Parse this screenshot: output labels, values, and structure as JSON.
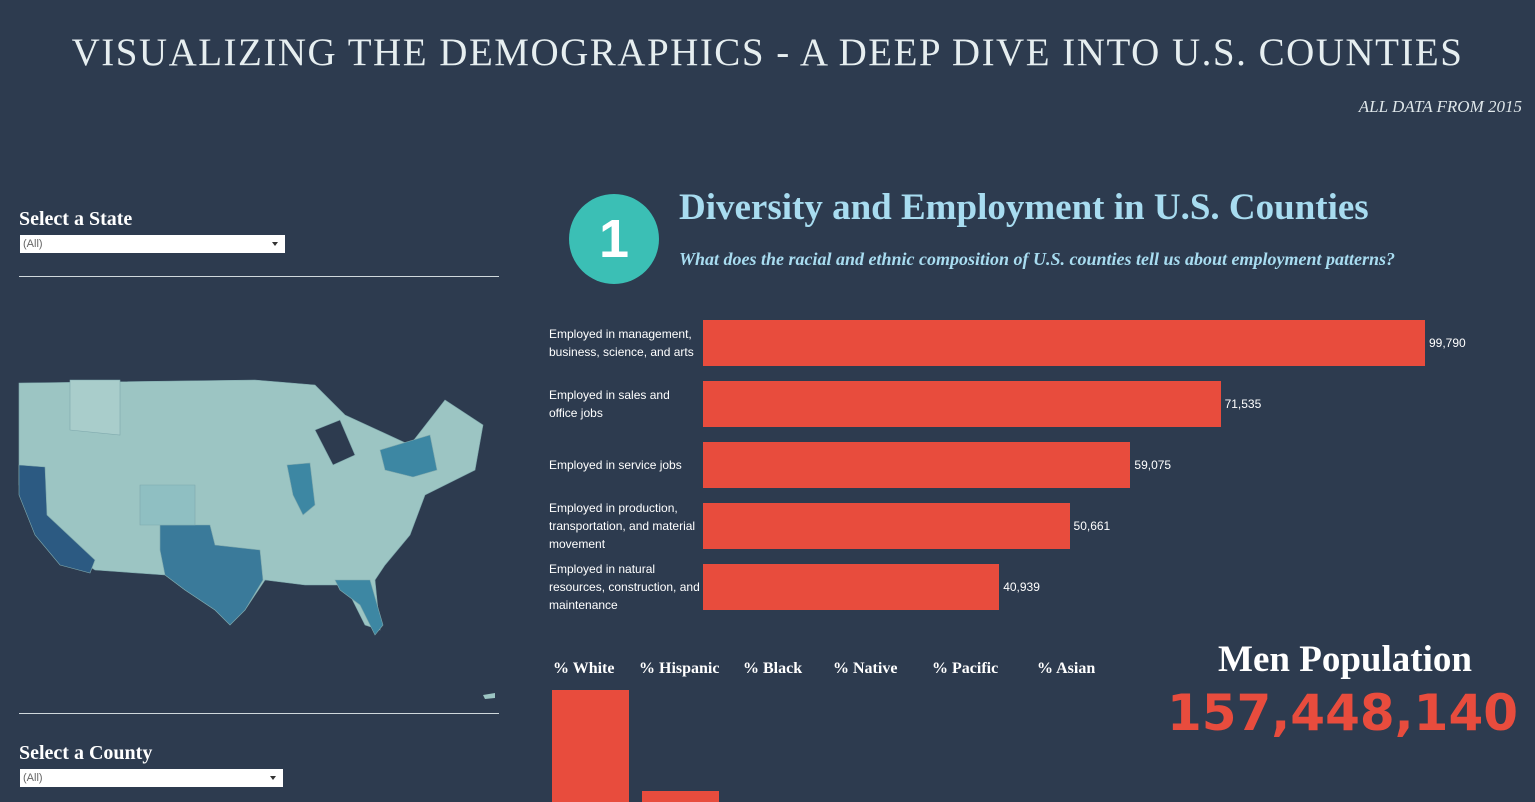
{
  "header": {
    "title": "VISUALIZING THE DEMOGRAPHICS - A DEEP DIVE INTO U.S. COUNTIES",
    "subtitle": "ALL DATA FROM 2015"
  },
  "filters": {
    "state": {
      "label": "Select a State",
      "value": "(All)"
    },
    "county": {
      "label": "Select a County",
      "value": "(All)"
    }
  },
  "section": {
    "number": "1",
    "title": "Diversity and Employment in U.S. Counties",
    "question": "What does the racial and ethnic composition of U.S. counties tell us about employment patterns?"
  },
  "chart_data": {
    "type": "bar",
    "orientation": "horizontal",
    "categories": [
      "Employed in management, business, science, and arts",
      "Employed in sales and office jobs",
      "Employed in service jobs",
      "Employed in production, transportation, and material movement",
      "Employed in natural resources, construction, and maintenance"
    ],
    "values": [
      99790,
      71535,
      59075,
      50661,
      40939
    ],
    "value_labels": [
      "99,790",
      "71,535",
      "59,075",
      "50,661",
      "40,939"
    ],
    "color": "#e84c3d"
  },
  "race_columns": [
    "% White",
    "% Hispanic",
    "% Black",
    "% Native",
    "% Pacific",
    "% Asian"
  ],
  "kpi": {
    "label": "Men Population",
    "value": "157,448,140"
  }
}
